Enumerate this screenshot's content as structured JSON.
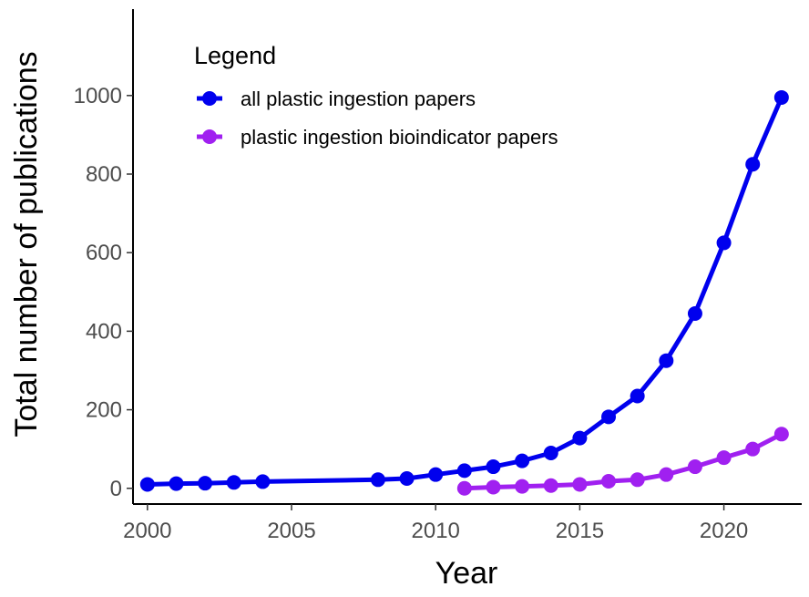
{
  "chart_data": {
    "type": "line",
    "title": "",
    "xlabel": "Year",
    "ylabel": "Total number of publications",
    "xlim": [
      1999.5,
      2022.7
    ],
    "ylim": [
      -40,
      1220
    ],
    "x_ticks": [
      2000,
      2005,
      2010,
      2015,
      2020
    ],
    "y_ticks": [
      0,
      200,
      400,
      600,
      800,
      1000
    ],
    "grid": false,
    "legend": {
      "title": "Legend",
      "position": "top-left"
    },
    "series": [
      {
        "name": "all plastic ingestion papers",
        "color": "#0000ee",
        "x": [
          2000,
          2001,
          2002,
          2003,
          2004,
          2008,
          2009,
          2010,
          2011,
          2012,
          2013,
          2014,
          2015,
          2016,
          2017,
          2018,
          2019,
          2020,
          2021,
          2022
        ],
        "y": [
          10,
          12,
          13,
          15,
          17,
          22,
          25,
          35,
          45,
          55,
          70,
          90,
          128,
          182,
          235,
          325,
          445,
          625,
          825,
          995
        ]
      },
      {
        "name": "plastic ingestion bioindicator papers",
        "color": "#a020f0",
        "x": [
          2011,
          2012,
          2013,
          2014,
          2015,
          2016,
          2017,
          2018,
          2019,
          2020,
          2021,
          2022
        ],
        "y": [
          0,
          3,
          5,
          7,
          10,
          18,
          22,
          35,
          55,
          78,
          100,
          138
        ]
      }
    ]
  }
}
